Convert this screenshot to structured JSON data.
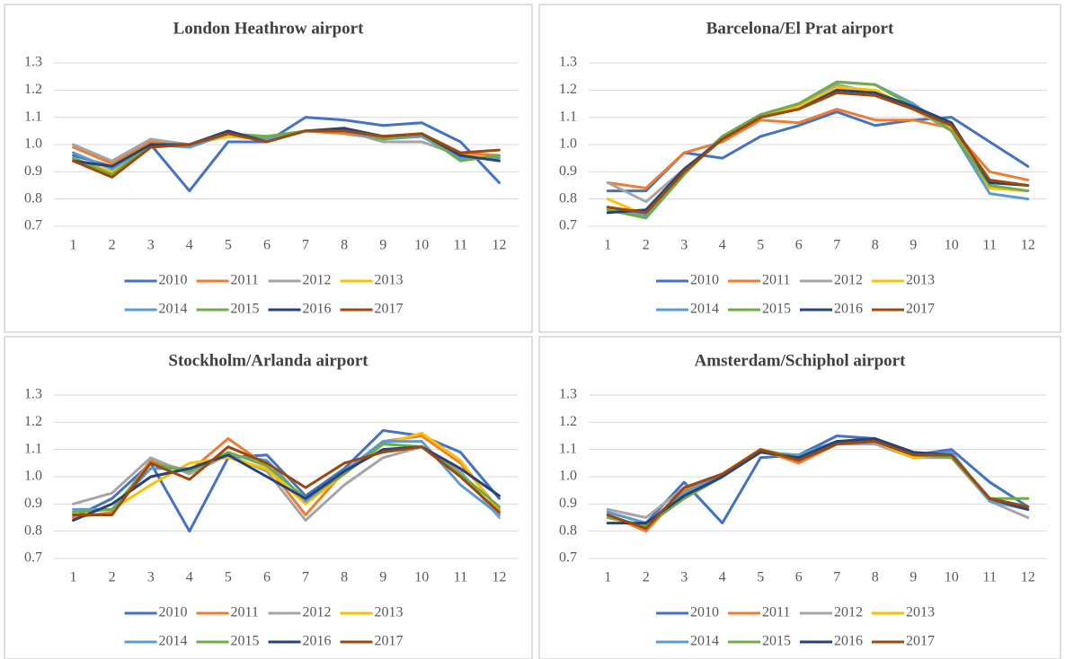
{
  "chart_data": [
    {
      "type": "line",
      "title": "London Heathrow airport",
      "categories": [
        "1",
        "2",
        "3",
        "4",
        "5",
        "6",
        "7",
        "8",
        "9",
        "10",
        "11",
        "12"
      ],
      "ylim": [
        0.7,
        1.3
      ],
      "yticks": [
        0.7,
        0.8,
        0.9,
        {
          "value": 1,
          "label": "1.0"
        },
        1.1,
        1.2,
        1.3
      ],
      "grid": true,
      "legend": "bottom",
      "series": [
        {
          "name": "2010",
          "color": "#4472c4",
          "values": [
            0.96,
            0.92,
            1.0,
            0.83,
            1.01,
            1.01,
            1.1,
            1.09,
            1.07,
            1.08,
            1.01,
            0.86
          ]
        },
        {
          "name": "2011",
          "color": "#ed7d31",
          "values": [
            0.99,
            0.93,
            1.01,
            1.0,
            1.03,
            1.02,
            1.05,
            1.04,
            1.02,
            1.03,
            0.97,
            0.96
          ]
        },
        {
          "name": "2012",
          "color": "#a5a5a5",
          "values": [
            1.0,
            0.94,
            1.02,
            1.0,
            1.04,
            1.02,
            1.05,
            1.05,
            1.01,
            1.01,
            0.96,
            0.95
          ]
        },
        {
          "name": "2013",
          "color": "#ffc000",
          "values": [
            0.95,
            0.9,
            1.0,
            1.0,
            1.03,
            1.02,
            1.05,
            1.05,
            1.02,
            1.03,
            0.96,
            0.95
          ]
        },
        {
          "name": "2014",
          "color": "#5b9bd5",
          "values": [
            0.97,
            0.91,
            1.0,
            0.99,
            1.04,
            1.02,
            1.05,
            1.05,
            1.02,
            1.03,
            0.95,
            0.95
          ]
        },
        {
          "name": "2015",
          "color": "#70ad47",
          "values": [
            0.95,
            0.89,
            1.0,
            1.0,
            1.04,
            1.03,
            1.05,
            1.06,
            1.02,
            1.04,
            0.94,
            0.96
          ]
        },
        {
          "name": "2016",
          "color": "#264478",
          "values": [
            0.94,
            0.92,
            1.0,
            1.0,
            1.05,
            1.01,
            1.05,
            1.06,
            1.03,
            1.04,
            0.96,
            0.94
          ]
        },
        {
          "name": "2017",
          "color": "#9e480e",
          "values": [
            0.94,
            0.88,
            0.99,
            1.0,
            1.04,
            1.01,
            1.05,
            1.05,
            1.03,
            1.04,
            0.97,
            0.98
          ]
        }
      ]
    },
    {
      "type": "line",
      "title": "Barcelona/El Prat airport",
      "categories": [
        "1",
        "2",
        "3",
        "4",
        "5",
        "6",
        "7",
        "8",
        "9",
        "10",
        "11",
        "12"
      ],
      "ylim": [
        0.7,
        1.3
      ],
      "yticks": [
        0.7,
        0.8,
        0.9,
        {
          "value": 1,
          "label": "1.0"
        },
        1.1,
        1.2,
        1.3
      ],
      "grid": true,
      "legend": "bottom",
      "series": [
        {
          "name": "2010",
          "color": "#4472c4",
          "values": [
            0.83,
            0.83,
            0.97,
            0.95,
            1.03,
            1.07,
            1.12,
            1.07,
            1.09,
            1.1,
            1.01,
            0.92
          ]
        },
        {
          "name": "2011",
          "color": "#ed7d31",
          "values": [
            0.86,
            0.84,
            0.97,
            1.01,
            1.09,
            1.08,
            1.13,
            1.09,
            1.09,
            1.06,
            0.9,
            0.87
          ]
        },
        {
          "name": "2012",
          "color": "#a5a5a5",
          "values": [
            0.86,
            0.79,
            0.91,
            1.02,
            1.11,
            1.14,
            1.22,
            1.19,
            1.13,
            1.05,
            0.84,
            0.83
          ]
        },
        {
          "name": "2013",
          "color": "#ffc000",
          "values": [
            0.8,
            0.74,
            0.9,
            1.03,
            1.11,
            1.14,
            1.21,
            1.2,
            1.13,
            1.06,
            0.84,
            0.83
          ]
        },
        {
          "name": "2014",
          "color": "#5b9bd5",
          "values": [
            0.77,
            0.74,
            0.9,
            1.03,
            1.11,
            1.15,
            1.23,
            1.22,
            1.15,
            1.05,
            0.82,
            0.8
          ]
        },
        {
          "name": "2015",
          "color": "#70ad47",
          "values": [
            0.76,
            0.73,
            0.89,
            1.03,
            1.11,
            1.15,
            1.23,
            1.22,
            1.14,
            1.05,
            0.85,
            0.83
          ]
        },
        {
          "name": "2016",
          "color": "#264478",
          "values": [
            0.75,
            0.76,
            0.91,
            1.02,
            1.1,
            1.13,
            1.2,
            1.19,
            1.14,
            1.08,
            0.86,
            0.85
          ]
        },
        {
          "name": "2017",
          "color": "#9e480e",
          "values": [
            0.77,
            0.75,
            0.9,
            1.02,
            1.1,
            1.13,
            1.19,
            1.18,
            1.13,
            1.07,
            0.87,
            0.85
          ]
        }
      ]
    },
    {
      "type": "line",
      "title": "Stockholm/Arlanda airport",
      "categories": [
        "1",
        "2",
        "3",
        "4",
        "5",
        "6",
        "7",
        "8",
        "9",
        "10",
        "11",
        "12"
      ],
      "ylim": [
        0.7,
        1.3
      ],
      "yticks": [
        0.7,
        0.8,
        0.9,
        {
          "value": 1,
          "label": "1.0"
        },
        1.1,
        1.2,
        1.3
      ],
      "grid": true,
      "legend": "bottom",
      "series": [
        {
          "name": "2010",
          "color": "#4472c4",
          "values": [
            0.85,
            0.92,
            1.05,
            0.8,
            1.07,
            1.08,
            0.93,
            1.03,
            1.17,
            1.15,
            1.09,
            0.92
          ]
        },
        {
          "name": "2011",
          "color": "#ed7d31",
          "values": [
            0.85,
            0.87,
            1.06,
            1.02,
            1.14,
            1.04,
            0.86,
            1.02,
            1.13,
            1.15,
            1.05,
            0.88
          ]
        },
        {
          "name": "2012",
          "color": "#a5a5a5",
          "values": [
            0.9,
            0.94,
            1.07,
            1.01,
            1.08,
            1.02,
            0.84,
            0.97,
            1.07,
            1.11,
            1.02,
            0.85
          ]
        },
        {
          "name": "2013",
          "color": "#ffc000",
          "values": [
            0.87,
            0.88,
            0.97,
            1.05,
            1.07,
            1.03,
            0.9,
            1.01,
            1.12,
            1.16,
            1.06,
            0.87
          ]
        },
        {
          "name": "2014",
          "color": "#5b9bd5",
          "values": [
            0.88,
            0.88,
            1.03,
            1.03,
            1.08,
            1.06,
            0.91,
            1.02,
            1.13,
            1.13,
            0.97,
            0.86
          ]
        },
        {
          "name": "2015",
          "color": "#70ad47",
          "values": [
            0.87,
            0.88,
            1.05,
            1.02,
            1.09,
            1.04,
            0.92,
            1.01,
            1.12,
            1.11,
            1.01,
            0.89
          ]
        },
        {
          "name": "2016",
          "color": "#264478",
          "values": [
            0.84,
            0.9,
            1.0,
            1.03,
            1.08,
            1.0,
            0.92,
            1.02,
            1.1,
            1.11,
            1.03,
            0.93
          ]
        },
        {
          "name": "2017",
          "color": "#9e480e",
          "values": [
            0.86,
            0.86,
            1.05,
            0.99,
            1.11,
            1.05,
            0.96,
            1.05,
            1.09,
            1.11,
            1.0,
            0.87
          ]
        }
      ]
    },
    {
      "type": "line",
      "title": "Amsterdam/Schiphol airport",
      "categories": [
        "1",
        "2",
        "3",
        "4",
        "5",
        "6",
        "7",
        "8",
        "9",
        "10",
        "11",
        "12"
      ],
      "ylim": [
        0.7,
        1.3
      ],
      "yticks": [
        0.7,
        0.8,
        0.9,
        {
          "value": 1,
          "label": "1.0"
        },
        1.1,
        1.2,
        1.3
      ],
      "grid": true,
      "legend": "bottom",
      "series": [
        {
          "name": "2010",
          "color": "#4472c4",
          "values": [
            0.87,
            0.83,
            0.98,
            0.83,
            1.07,
            1.08,
            1.15,
            1.14,
            1.08,
            1.1,
            0.98,
            0.89
          ]
        },
        {
          "name": "2011",
          "color": "#ed7d31",
          "values": [
            0.86,
            0.8,
            0.95,
            1.01,
            1.1,
            1.05,
            1.12,
            1.13,
            1.07,
            1.08,
            0.92,
            0.88
          ]
        },
        {
          "name": "2012",
          "color": "#a5a5a5",
          "values": [
            0.88,
            0.85,
            0.96,
            1.01,
            1.09,
            1.07,
            1.12,
            1.12,
            1.07,
            1.07,
            0.91,
            0.85
          ]
        },
        {
          "name": "2013",
          "color": "#ffc000",
          "values": [
            0.85,
            0.82,
            0.94,
            1.01,
            1.1,
            1.07,
            1.13,
            1.13,
            1.07,
            1.08,
            0.92,
            0.89
          ]
        },
        {
          "name": "2014",
          "color": "#5b9bd5",
          "values": [
            0.87,
            0.83,
            0.94,
            1.01,
            1.09,
            1.08,
            1.13,
            1.13,
            1.08,
            1.09,
            0.91,
            0.88
          ]
        },
        {
          "name": "2015",
          "color": "#70ad47",
          "values": [
            0.85,
            0.82,
            0.92,
            1.0,
            1.1,
            1.07,
            1.13,
            1.13,
            1.08,
            1.07,
            0.92,
            0.92
          ]
        },
        {
          "name": "2016",
          "color": "#264478",
          "values": [
            0.83,
            0.83,
            0.93,
            1.0,
            1.09,
            1.07,
            1.13,
            1.14,
            1.09,
            1.08,
            0.92,
            0.88
          ]
        },
        {
          "name": "2017",
          "color": "#9e480e",
          "values": [
            0.86,
            0.81,
            0.96,
            1.01,
            1.1,
            1.06,
            1.12,
            1.13,
            1.08,
            1.08,
            0.92,
            0.89
          ]
        }
      ]
    }
  ]
}
